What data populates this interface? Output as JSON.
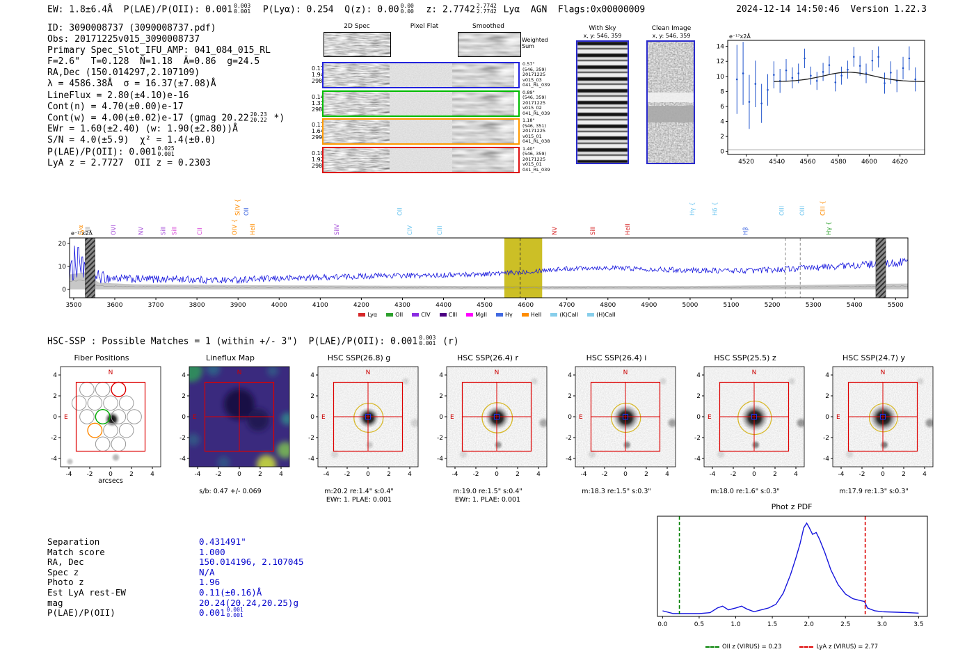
{
  "header": {
    "ew": "EW: 1.8±6.4Å  ",
    "plae": "P(LAE)/P(OII): 0.001",
    "plae_hi": "0.003",
    "plae_lo": "0.001",
    "plya": "  P(Lyα): 0.254  ",
    "qz": "Q(z): 0.00",
    "qz_hi": "0.00",
    "qz_lo": "0.00",
    "z": "  z: 2.7742",
    "z_hi": "2.7742",
    "z_lo": "2.7742",
    "cls": " Lyα  AGN  ",
    "flags": "Flags:0x00000009",
    "timestamp": "2024-12-14 14:50:46  Version 1.22.3"
  },
  "info": {
    "l1": "ID: 3090008737 (3090008737.pdf)",
    "l2": "Obs: 20171225v015_3090008737",
    "l3": "Primary Spec_Slot_IFU_AMP: 041_084_015_RL",
    "l4": "F=2.6\"  T=0.128  N̄=1.18  Ā=0.86  g=24.5",
    "l5": "RA,Dec (150.014297,2.107109)",
    "l6": "λ = 4586.38Å  σ = 16.37(±7.08)Å",
    "l7": "LineFlux = 2.80(±4.10)e-16",
    "l8": "Cont(n) = 4.70(±0.00)e-17",
    "l9a": "Cont(w) = 4.00(±0.02)e-17 (gmag 20.22",
    "l9hi": "20.23",
    "l9lo": "20.22",
    "l9b": " *)",
    "l10": "EWr = 1.60(±2.40) (w: 1.90(±2.80))Å",
    "l11": "S/N = 4.0(±5.9)  χ² = 1.4(±0.0)",
    "l12a": "P(LAE)/P(OII): 0.001",
    "l12hi": "0.025",
    "l12lo": "0.001",
    "l13": "LyA z = 2.7727  OII z = 0.2303"
  },
  "spec2d": {
    "col_titles": [
      "2D Spec",
      "Pixel Flat",
      "Smoothed"
    ],
    "weighted_sum": [
      "Weighted",
      "Sum"
    ],
    "rows": [
      {
        "color": "#2222dd",
        "left": [
          "0.17",
          "1.94",
          "298"
        ],
        "right": [
          "0.57\"",
          "(546, 359)",
          "20171225",
          "v015_03",
          "041_RL_039"
        ]
      },
      {
        "color": "#00bb00",
        "left": [
          "0.14",
          "1.31",
          "298"
        ],
        "right": [
          "0.89\"",
          "(546, 359)",
          "20171225",
          "v015_02",
          "041_RL_039"
        ]
      },
      {
        "color": "#ff9900",
        "left": [
          "0.11",
          "1.64",
          "299"
        ],
        "right": [
          "1.18\"",
          "(546, 351)",
          "20171225",
          "v015_01",
          "041_RL_038"
        ]
      },
      {
        "color": "#dd1111",
        "left": [
          "0.10",
          "1.92",
          "298"
        ],
        "right": [
          "1.40\"",
          "(546, 359)",
          "20171225",
          "v015_01",
          "041_RL_039"
        ]
      }
    ]
  },
  "sky_panels": {
    "with_sky": {
      "title": "With Sky",
      "xy": "x, y: 546, 359"
    },
    "clean": {
      "title": "Clean Image",
      "xy": "x, y: 546, 359"
    }
  },
  "hsc_header": {
    "a": "HSC-SSP : Possible Matches = 1 (within +/- 3\")  P(LAE)/P(OII): 0.001",
    "hi": "0.003",
    "lo": "0.001",
    "b": " (r)"
  },
  "cutouts": [
    {
      "kind": "fiber",
      "title": "Fiber Positions",
      "xlabel": "arcsecs",
      "captions": []
    },
    {
      "kind": "lineflux",
      "title": "Lineflux Map",
      "captions": [
        "s/b: 0.47 +/- 0.069"
      ]
    },
    {
      "kind": "img",
      "band": "g",
      "title": "HSC SSP(26.8) g",
      "captions": [
        "m:20.2 re:1.4\" s:0.4\"",
        "EWr: 1. PLAE: 0.001"
      ],
      "blob_r": 1.0,
      "ring_r": 1.4,
      "sec_opacity": 0.18
    },
    {
      "kind": "img",
      "band": "r",
      "title": "HSC SSP(26.4) r",
      "captions": [
        "m:19.0 re:1.5\" s:0.4\"",
        "EWr: 1. PLAE: 0.001"
      ],
      "blob_r": 1.15,
      "ring_r": 1.45,
      "sec_opacity": 0.4
    },
    {
      "kind": "img",
      "band": "i",
      "title": "HSC SSP(26.4) i",
      "captions": [
        "m:18.3 re:1.5\" s:0.3\""
      ],
      "blob_r": 1.25,
      "ring_r": 1.4,
      "sec_opacity": 0.45
    },
    {
      "kind": "img",
      "band": "z",
      "title": "HSC SSP(25.5) z",
      "captions": [
        "m:18.0 re:1.6\" s:0.3\""
      ],
      "blob_r": 1.3,
      "ring_r": 1.6,
      "sec_opacity": 0.5
    },
    {
      "kind": "img",
      "band": "y",
      "title": "HSC SSP(24.7) y",
      "captions": [
        "m:17.9 re:1.3\" s:0.3\""
      ],
      "blob_r": 1.3,
      "ring_r": 1.35,
      "sec_opacity": 0.5
    }
  ],
  "match": {
    "rows": [
      {
        "label": "Separation",
        "value": "0.431491\""
      },
      {
        "label": "Match score",
        "value": "1.000"
      },
      {
        "label": "RA, Dec",
        "value": "150.014196, 2.107045"
      },
      {
        "label": "Spec z",
        "value": "N/A"
      },
      {
        "label": "Photo z",
        "value": "1.96"
      },
      {
        "label": "Est LyA rest-EW",
        "value": "0.11(±0.16)Å"
      },
      {
        "label": "mag",
        "value": "20.24(20.24,20.25)g"
      },
      {
        "label": "P(LAE)/P(OII)",
        "value": "0.001",
        "hi": "0.001",
        "lo": "0.001"
      }
    ]
  },
  "chart_data": [
    {
      "id": "zoom_spectrum",
      "type": "scatter",
      "corner_label": "e⁻¹⁷x2Å",
      "xlim": [
        4508,
        4636
      ],
      "ylim": [
        -0.4,
        14.8
      ],
      "xticks": [
        4520,
        4540,
        4560,
        4580,
        4600,
        4620
      ],
      "yticks": [
        0,
        2,
        4,
        6,
        8,
        10,
        12,
        14
      ],
      "marker_color": "#2255cc",
      "fit": {
        "center": 4586.38,
        "sigma": 16.37,
        "amplitude": 1.25,
        "baseline": 9.3,
        "color": "#222222"
      },
      "x": [
        4514,
        4518,
        4522,
        4526,
        4530,
        4534,
        4538,
        4542,
        4546,
        4550,
        4554,
        4558,
        4562,
        4566,
        4570,
        4574,
        4578,
        4582,
        4586,
        4590,
        4594,
        4598,
        4602,
        4606,
        4610,
        4614,
        4618,
        4622,
        4626,
        4630
      ],
      "y": [
        9.6,
        10.4,
        6.6,
        9.0,
        6.4,
        8.2,
        10.2,
        9.4,
        10.8,
        9.8,
        10.4,
        12.4,
        10.1,
        9.4,
        10.6,
        11.5,
        9.2,
        10.1,
        10.9,
        12.6,
        11.4,
        10.4,
        12.1,
        12.6,
        9.1,
        10.5,
        9.4,
        11.1,
        12.4,
        9.6
      ],
      "yerr": [
        4.6,
        4.2,
        3.6,
        3.1,
        2.6,
        2.1,
        1.8,
        1.6,
        1.5,
        1.4,
        1.3,
        1.3,
        1.2,
        1.2,
        1.2,
        1.2,
        1.2,
        1.2,
        1.2,
        1.3,
        1.3,
        1.3,
        1.4,
        1.4,
        1.4,
        1.5,
        1.5,
        1.5,
        1.6,
        1.6
      ]
    },
    {
      "id": "full_spectrum",
      "type": "line",
      "corner_label": "e⁻¹⁷x2Å",
      "xlim": [
        3490,
        5530
      ],
      "ylim": [
        -3.6,
        22.4
      ],
      "xticks": [
        3500,
        3600,
        3700,
        3800,
        3900,
        4000,
        4100,
        4200,
        4300,
        4400,
        4500,
        4600,
        4700,
        4800,
        4900,
        5000,
        5100,
        5200,
        5300,
        5400,
        5500
      ],
      "yticks": [
        0,
        10,
        20
      ],
      "line_color": "#1515dd",
      "envelope": [
        [
          3490,
          8
        ],
        [
          3520,
          9
        ],
        [
          3545,
          6
        ],
        [
          3580,
          5
        ],
        [
          3650,
          4.5
        ],
        [
          3750,
          4.5
        ],
        [
          3850,
          4
        ],
        [
          3950,
          4.5
        ],
        [
          4050,
          5
        ],
        [
          4150,
          5.5
        ],
        [
          4250,
          6
        ],
        [
          4350,
          6
        ],
        [
          4450,
          6.5
        ],
        [
          4550,
          7
        ],
        [
          4586,
          7.5
        ],
        [
          4650,
          8.5
        ],
        [
          4750,
          9.5
        ],
        [
          4850,
          9.2
        ],
        [
          4950,
          8.6
        ],
        [
          5050,
          8.2
        ],
        [
          5150,
          8.2
        ],
        [
          5250,
          9
        ],
        [
          5350,
          10
        ],
        [
          5450,
          11
        ],
        [
          5530,
          12
        ]
      ],
      "noise_amp": [
        [
          3490,
          5
        ],
        [
          3560,
          3
        ],
        [
          3600,
          1.8
        ],
        [
          4000,
          1.4
        ],
        [
          4400,
          1.1
        ],
        [
          4800,
          1.0
        ],
        [
          5200,
          1.3
        ],
        [
          5530,
          1.8
        ]
      ],
      "err_band": [
        [
          3490,
          6.5
        ],
        [
          3530,
          7.5
        ],
        [
          3560,
          3
        ],
        [
          3650,
          2.2
        ],
        [
          4000,
          1.8
        ],
        [
          4500,
          1.5
        ],
        [
          5000,
          1.5
        ],
        [
          5300,
          2
        ],
        [
          5530,
          2.6
        ]
      ],
      "spikes": [
        [
          3502,
          19
        ],
        [
          3511,
          22
        ],
        [
          3521,
          17
        ]
      ],
      "highlight_band": {
        "x0": 4548,
        "x1": 4640,
        "color": "#c3b400",
        "opacity": 0.85
      },
      "line_marker": {
        "wl": 4586.38,
        "color": "#333333"
      },
      "dashed_lines": [
        {
          "wl": 5232,
          "color": "#888888"
        },
        {
          "wl": 5268,
          "color": "#888888"
        }
      ],
      "hatch_bands": [
        [
          3528,
          3552
        ],
        [
          5452,
          5476
        ]
      ],
      "emission_labels": [
        {
          "label": "Lyα",
          "wl": 3522,
          "color": "#ff8c00",
          "row": 1
        },
        {
          "label": "SiII",
          "wl": 3539,
          "color": "#999999",
          "row": 1
        },
        {
          "label": "OVI",
          "wl": 3602,
          "color": "#a44bd8",
          "row": 1
        },
        {
          "label": "NV",
          "wl": 3669,
          "color": "#a44bd8",
          "row": 1
        },
        {
          "label": "SiII",
          "wl": 3723,
          "color": "#a44bd8",
          "row": 1
        },
        {
          "label": "SiII",
          "wl": 3750,
          "color": "#d84bd8",
          "row": 1
        },
        {
          "label": "CII",
          "wl": 3812,
          "color": "#d84bd8",
          "row": 1
        },
        {
          "label": "OIV {",
          "wl": 3896,
          "color": "#ff8c00",
          "row": 1
        },
        {
          "label": "SiIV {",
          "wl": 3904,
          "color": "#ff8c00",
          "row": 2
        },
        {
          "label": "OII",
          "wl": 3925,
          "color": "#4169e1",
          "row": 2
        },
        {
          "label": "HeII",
          "wl": 3940,
          "color": "#ff8c00",
          "row": 1
        },
        {
          "label": "SiIV",
          "wl": 4145,
          "color": "#a44bd8",
          "row": 1
        },
        {
          "label": "OII",
          "wl": 4298,
          "color": "#74c8f0",
          "row": 2
        },
        {
          "label": "CIV",
          "wl": 4323,
          "color": "#74c8f0",
          "row": 1
        },
        {
          "label": "CIII",
          "wl": 4396,
          "color": "#74c8f0",
          "row": 1
        },
        {
          "label": "NV",
          "wl": 4675,
          "color": "#d62728",
          "row": 1
        },
        {
          "label": "SiII",
          "wl": 4768,
          "color": "#d62728",
          "row": 1
        },
        {
          "label": "HeII",
          "wl": 4853,
          "color": "#d62728",
          "row": 1
        },
        {
          "label": "Hγ {",
          "wl": 5010,
          "color": "#74c8f0",
          "row": 2
        },
        {
          "label": "Hδ {",
          "wl": 5065,
          "color": "#74c8f0",
          "row": 2
        },
        {
          "label": "Hβ",
          "wl": 5140,
          "color": "#4169e1",
          "row": 1
        },
        {
          "label": "OIII",
          "wl": 5228,
          "color": "#74c8f0",
          "row": 2
        },
        {
          "label": "OIII",
          "wl": 5278,
          "color": "#74c8f0",
          "row": 2
        },
        {
          "label": "CIII {",
          "wl": 5328,
          "color": "#ff8c00",
          "row": 2
        },
        {
          "label": "Hγ {",
          "wl": 5342,
          "color": "#2ca02c",
          "row": 1
        }
      ],
      "legend": [
        {
          "label": "Lyα",
          "color": "#d62728"
        },
        {
          "label": "OII",
          "color": "#2ca02c"
        },
        {
          "label": "CIV",
          "color": "#8a2be2"
        },
        {
          "label": "CIII",
          "color": "#4b0082"
        },
        {
          "label": "MgII",
          "color": "#ff00ff"
        },
        {
          "label": "Hγ",
          "color": "#4169e1"
        },
        {
          "label": "HeII",
          "color": "#ff8c00"
        },
        {
          "label": "(K)CaII",
          "color": "#87ceeb"
        },
        {
          "label": "(H)CaII",
          "color": "#87ceeb"
        }
      ]
    },
    {
      "id": "photz_pdf",
      "type": "line",
      "title": "Phot z PDF",
      "xlim": [
        -0.07,
        3.62
      ],
      "xticks": [
        0.0,
        0.5,
        1.0,
        1.5,
        2.0,
        2.5,
        3.0,
        3.5
      ],
      "line_color": "#1515dd",
      "curve": [
        [
          0,
          0.06
        ],
        [
          0.15,
          0.03
        ],
        [
          0.3,
          0.03
        ],
        [
          0.5,
          0.03
        ],
        [
          0.65,
          0.04
        ],
        [
          0.75,
          0.09
        ],
        [
          0.82,
          0.11
        ],
        [
          0.9,
          0.07
        ],
        [
          1.0,
          0.09
        ],
        [
          1.08,
          0.11
        ],
        [
          1.15,
          0.08
        ],
        [
          1.25,
          0.05
        ],
        [
          1.35,
          0.07
        ],
        [
          1.45,
          0.09
        ],
        [
          1.55,
          0.13
        ],
        [
          1.65,
          0.25
        ],
        [
          1.75,
          0.45
        ],
        [
          1.82,
          0.62
        ],
        [
          1.88,
          0.78
        ],
        [
          1.93,
          0.95
        ],
        [
          1.97,
          1.0
        ],
        [
          2.0,
          0.96
        ],
        [
          2.05,
          0.88
        ],
        [
          2.1,
          0.9
        ],
        [
          2.15,
          0.82
        ],
        [
          2.22,
          0.68
        ],
        [
          2.3,
          0.5
        ],
        [
          2.4,
          0.34
        ],
        [
          2.5,
          0.24
        ],
        [
          2.6,
          0.19
        ],
        [
          2.7,
          0.17
        ],
        [
          2.76,
          0.16
        ],
        [
          2.8,
          0.09
        ],
        [
          2.9,
          0.06
        ],
        [
          3.0,
          0.05
        ],
        [
          3.2,
          0.045
        ],
        [
          3.35,
          0.04
        ],
        [
          3.5,
          0.035
        ]
      ],
      "vlines": [
        {
          "x": 0.23,
          "color": "#008000",
          "label": "OII z (VIRUS) = 0.23"
        },
        {
          "x": 2.77,
          "color": "#dd0000",
          "label": "LyA z (VIRUS) = 2.77"
        }
      ]
    }
  ]
}
